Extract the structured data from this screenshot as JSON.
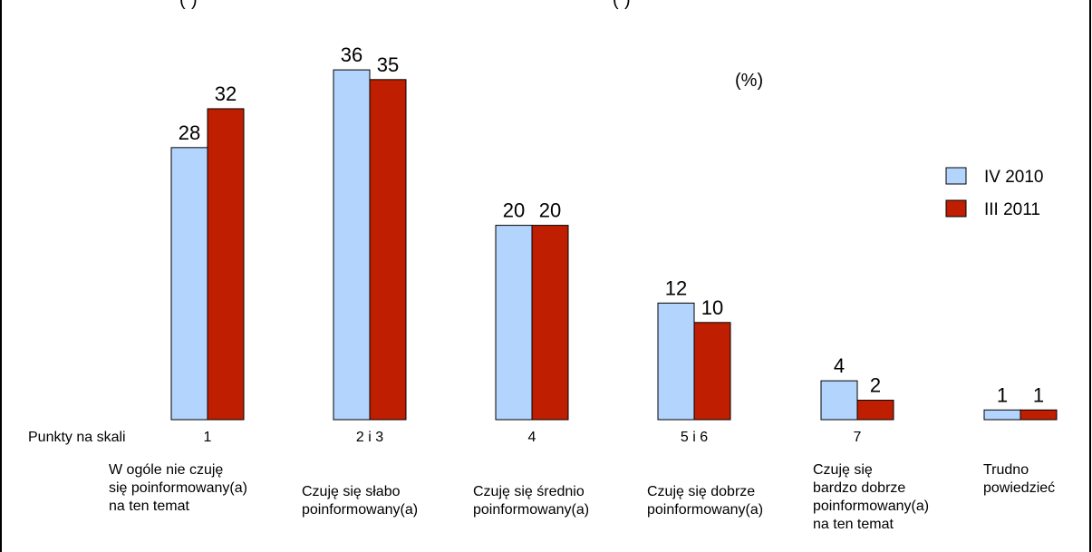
{
  "header_fragments": {
    "left": "(",
    "left_end": ")",
    "right": "(",
    "right_end": ")"
  },
  "chart_data": {
    "type": "bar",
    "unit_label": "(%)",
    "scale_label": "Punkty na skali",
    "categories": [
      "1",
      "2 i 3",
      "4",
      "5 i 6",
      "7",
      ""
    ],
    "category_descriptions": [
      [
        "W ogóle nie czuję",
        "się poinformowany(a)",
        "na ten temat"
      ],
      [
        "Czuję się słabo",
        "poinformowany(a)"
      ],
      [
        "Czuję się średnio",
        "poinformowany(a)"
      ],
      [
        "Czuję się dobrze",
        "poinformowany(a)"
      ],
      [
        "Czuję się",
        "bardzo dobrze",
        "poinformowany(a)",
        "na ten temat"
      ],
      [
        "Trudno",
        "powiedzieć"
      ]
    ],
    "series": [
      {
        "name": "IV 2010",
        "color": "#b3d4fc",
        "values": [
          28,
          36,
          20,
          12,
          4,
          1
        ]
      },
      {
        "name": "III 2011",
        "color": "#c01e00",
        "values": [
          32,
          35,
          20,
          10,
          2,
          1
        ]
      }
    ],
    "legend_position": "right",
    "grid": false
  }
}
